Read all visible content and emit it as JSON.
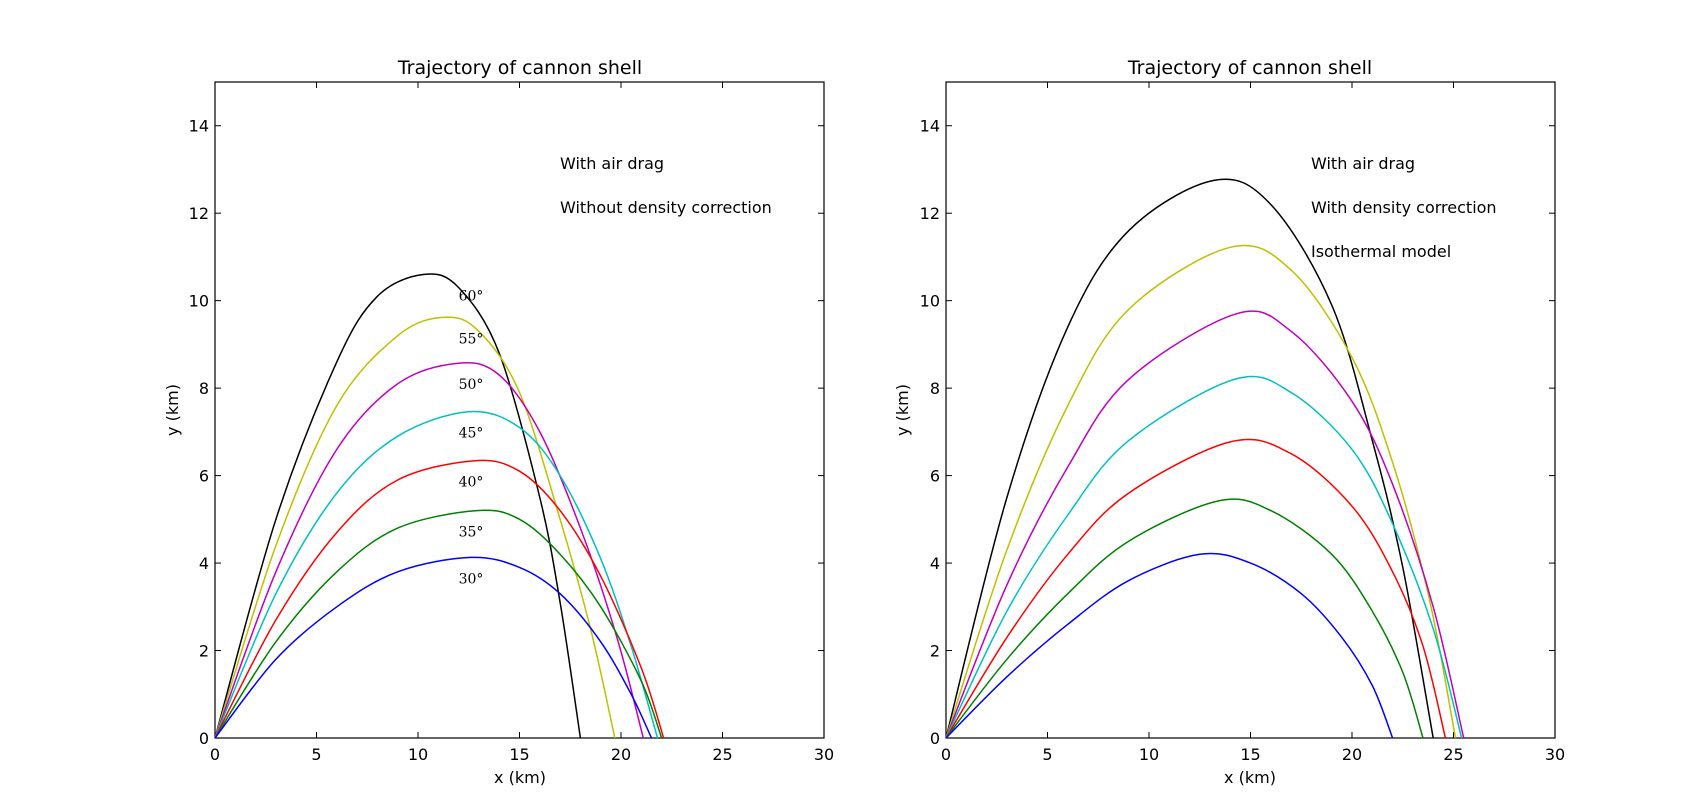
{
  "chart_data": [
    {
      "type": "line",
      "title": "Trajectory of cannon shell",
      "xlabel": "x (km)",
      "ylabel": "y (km)",
      "xlim": [
        0,
        30
      ],
      "ylim": [
        0,
        15
      ],
      "xticks": [
        0,
        5,
        10,
        15,
        20,
        25,
        30
      ],
      "yticks": [
        0,
        2,
        4,
        6,
        8,
        10,
        12,
        14
      ],
      "grid": false,
      "annotations": [
        "With air drag",
        "Without density correction"
      ],
      "series": [
        {
          "label": "60°",
          "color": "#000000",
          "x": [
            0,
            3,
            6,
            8,
            10.3,
            12,
            14,
            16,
            17,
            18.0
          ],
          "y": [
            0,
            5.0,
            8.6,
            10.1,
            10.6,
            10.3,
            8.8,
            5.5,
            3.1,
            0
          ]
        },
        {
          "label": "55°",
          "color": "#bfbf00",
          "x": [
            0,
            3,
            6,
            9,
            11.3,
            13,
            15,
            17,
            18.5,
            19.7
          ],
          "y": [
            0,
            4.4,
            7.6,
            9.2,
            9.62,
            9.3,
            7.9,
            5.0,
            2.5,
            0
          ]
        },
        {
          "label": "50°",
          "color": "#bf00bf",
          "x": [
            0,
            3,
            6,
            9,
            12.0,
            14,
            16,
            18,
            19.8,
            21.1
          ],
          "y": [
            0,
            3.8,
            6.6,
            8.1,
            8.57,
            8.3,
            7.0,
            4.8,
            2.3,
            0
          ]
        },
        {
          "label": "45°",
          "color": "#00bfbf",
          "x": [
            0,
            3,
            6,
            9,
            12.5,
            15,
            17,
            19,
            20.5,
            21.8
          ],
          "y": [
            0,
            3.3,
            5.6,
            6.9,
            7.46,
            7.1,
            6.0,
            4.1,
            2.1,
            0
          ]
        },
        {
          "label": "40°",
          "color": "#ff0000",
          "x": [
            0,
            3,
            6,
            9,
            12.8,
            15,
            17,
            19,
            21,
            22.1
          ],
          "y": [
            0,
            2.7,
            4.7,
            5.9,
            6.34,
            6.1,
            5.2,
            3.7,
            1.6,
            0
          ]
        },
        {
          "label": "35°",
          "color": "#008000",
          "x": [
            0,
            3,
            6,
            9,
            12.9,
            15,
            17,
            19,
            21,
            22.0
          ],
          "y": [
            0,
            2.2,
            3.8,
            4.8,
            5.2,
            5.0,
            4.2,
            3.0,
            1.3,
            0
          ]
        },
        {
          "label": "30°",
          "color": "#0000ff",
          "x": [
            0,
            3,
            6,
            9,
            12.6,
            15,
            17,
            19,
            20.5,
            21.5
          ],
          "y": [
            0,
            1.8,
            3.0,
            3.8,
            4.13,
            3.9,
            3.3,
            2.2,
            1.0,
            0
          ]
        }
      ]
    },
    {
      "type": "line",
      "title": "Trajectory of cannon shell",
      "xlabel": "x (km)",
      "ylabel": "y (km)",
      "xlim": [
        0,
        30
      ],
      "ylim": [
        0,
        15
      ],
      "xticks": [
        0,
        5,
        10,
        15,
        20,
        25,
        30
      ],
      "yticks": [
        0,
        2,
        4,
        6,
        8,
        10,
        12,
        14
      ],
      "grid": false,
      "annotations": [
        "With air drag",
        "With density correction",
        "Isothermal model"
      ],
      "series": [
        {
          "color": "#000000",
          "x": [
            0,
            3,
            6,
            9,
            13.2,
            16,
            19,
            21,
            22.5,
            24.0
          ],
          "y": [
            0,
            5.5,
            9.4,
            11.6,
            12.75,
            12.2,
            9.9,
            6.8,
            3.9,
            0
          ]
        },
        {
          "color": "#bfbf00",
          "x": [
            0,
            3,
            6,
            9,
            14.0,
            17,
            20,
            22,
            23.8,
            25.1
          ],
          "y": [
            0,
            4.3,
            7.6,
            9.8,
            11.22,
            10.7,
            8.7,
            6.3,
            3.2,
            0
          ]
        },
        {
          "color": "#bf00bf",
          "x": [
            0,
            3,
            6,
            9,
            14.3,
            17,
            20,
            22,
            24,
            25.5
          ],
          "y": [
            0,
            3.5,
            6.2,
            8.2,
            9.7,
            9.3,
            7.7,
            5.8,
            3.0,
            0
          ]
        },
        {
          "color": "#00bfbf",
          "x": [
            0,
            3,
            6,
            9,
            14.2,
            17,
            20,
            22,
            24,
            25.4
          ],
          "y": [
            0,
            2.9,
            5.1,
            6.8,
            8.2,
            7.9,
            6.6,
            4.9,
            2.5,
            0
          ]
        },
        {
          "color": "#ff0000",
          "x": [
            0,
            3,
            6,
            9,
            14.0,
            17,
            20,
            22,
            23.5,
            24.6
          ],
          "y": [
            0,
            2.3,
            4.2,
            5.6,
            6.77,
            6.5,
            5.3,
            3.8,
            2.1,
            0
          ]
        },
        {
          "color": "#008000",
          "x": [
            0,
            3,
            6,
            9,
            13.4,
            16,
            19,
            21,
            22.5,
            23.5
          ],
          "y": [
            0,
            1.8,
            3.3,
            4.5,
            5.42,
            5.2,
            4.2,
            2.9,
            1.5,
            0
          ]
        },
        {
          "color": "#0000ff",
          "x": [
            0,
            3,
            6,
            9,
            12.5,
            15,
            17.5,
            19.5,
            21,
            22.0
          ],
          "y": [
            0,
            1.4,
            2.6,
            3.6,
            4.2,
            4.0,
            3.3,
            2.3,
            1.2,
            0
          ]
        }
      ]
    }
  ]
}
